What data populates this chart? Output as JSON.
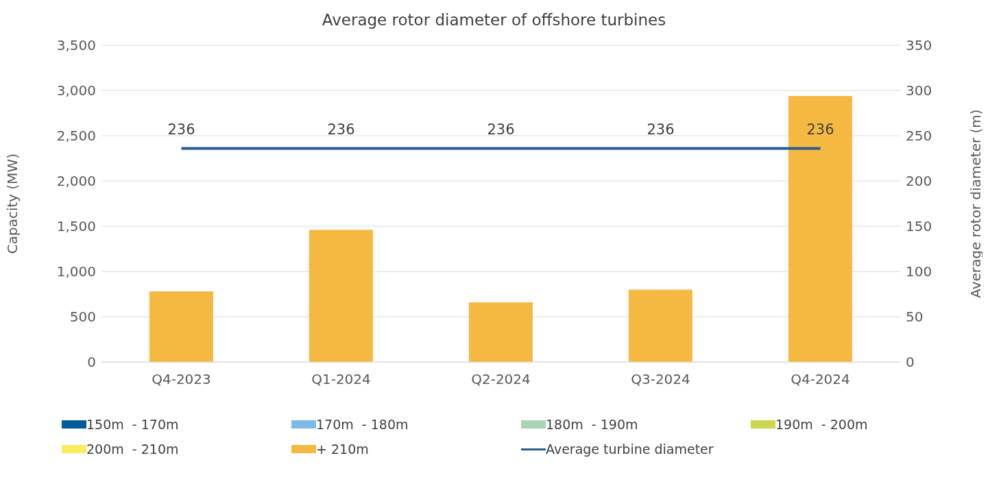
{
  "chart_data": {
    "type": "bar",
    "title": "Average rotor diameter of offshore turbines",
    "ylabel": "Capacity (MW)",
    "y2label": "Average rotor diameter (m)",
    "categories": [
      "Q4-2023",
      "Q1-2024",
      "Q2-2024",
      "Q3-2024",
      "Q4-2024"
    ],
    "stacked": true,
    "grid": "y",
    "legend": "bottom",
    "ylim": [
      0,
      3500
    ],
    "yticks": [
      {
        "value": 0,
        "label": "0"
      },
      {
        "value": 500,
        "label": "500"
      },
      {
        "value": 1000,
        "label": "1,000"
      },
      {
        "value": 1500,
        "label": "1,500"
      },
      {
        "value": 2000,
        "label": "2,000"
      },
      {
        "value": 2500,
        "label": "2,500"
      },
      {
        "value": 3000,
        "label": "3,000"
      },
      {
        "value": 3500,
        "label": "3,500"
      }
    ],
    "y2lim": [
      0,
      350
    ],
    "y2ticks": [
      0,
      50,
      100,
      150,
      200,
      250,
      300,
      350
    ],
    "series": [
      {
        "name": "150m  - 170m",
        "color": "#005a9c",
        "values": [
          0,
          0,
          0,
          0,
          0
        ]
      },
      {
        "name": "170m  - 180m",
        "color": "#7cb9e8",
        "values": [
          0,
          0,
          0,
          0,
          0
        ]
      },
      {
        "name": "180m  - 190m",
        "color": "#a8d5b5",
        "values": [
          0,
          0,
          0,
          0,
          0
        ]
      },
      {
        "name": "190m  - 200m",
        "color": "#cdd64f",
        "values": [
          0,
          0,
          0,
          0,
          0
        ]
      },
      {
        "name": "200m  - 210m",
        "color": "#f5ec5e",
        "values": [
          0,
          0,
          0,
          0,
          0
        ]
      },
      {
        "name": "+ 210m",
        "color": "#f5b942",
        "values": [
          780,
          1460,
          660,
          800,
          2940
        ]
      },
      {
        "name": "Average turbine diameter",
        "type": "line",
        "axis": "y2",
        "color": "#2a5d8f",
        "values": [
          236,
          236,
          236,
          236,
          236
        ],
        "value_labels": [
          "236",
          "236",
          "236",
          "236",
          "236"
        ]
      }
    ]
  }
}
